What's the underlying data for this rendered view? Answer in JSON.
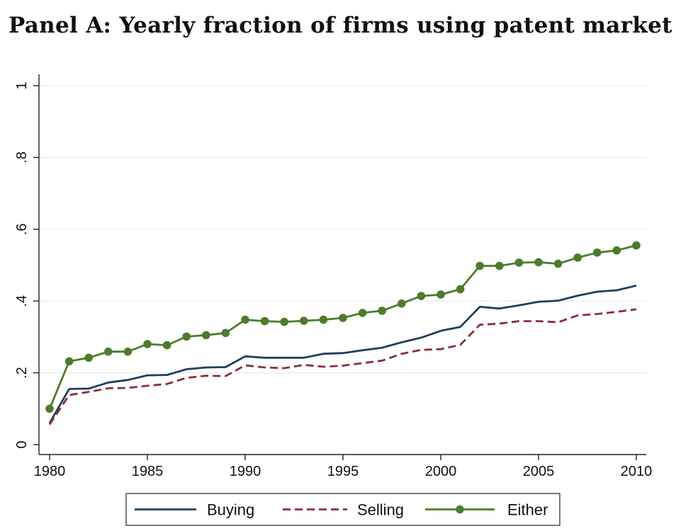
{
  "title": "Panel A: Yearly fraction of firms using patent market",
  "chart_data": {
    "type": "line",
    "title": "Panel A: Yearly fraction of firms using patent market",
    "xlabel": "",
    "ylabel": "",
    "xlim": [
      1980,
      2010
    ],
    "ylim": [
      0,
      1
    ],
    "x_ticks": [
      "1980",
      "1985",
      "1990",
      "1995",
      "2000",
      "2005",
      "2010"
    ],
    "y_ticks": [
      "0",
      ".2",
      ".4",
      ".6",
      ".8",
      "1"
    ],
    "grid": true,
    "legend_position": "bottom",
    "x": [
      1980,
      1981,
      1982,
      1983,
      1984,
      1985,
      1986,
      1987,
      1988,
      1989,
      1990,
      1991,
      1992,
      1993,
      1994,
      1995,
      1996,
      1997,
      1998,
      1999,
      2000,
      2001,
      2002,
      2003,
      2004,
      2005,
      2006,
      2007,
      2008,
      2009,
      2010
    ],
    "series": [
      {
        "name": "Buying",
        "color": "#1f3f5f",
        "style": "solid",
        "values": [
          0.06,
          0.155,
          0.156,
          0.173,
          0.18,
          0.193,
          0.194,
          0.21,
          0.215,
          0.216,
          0.246,
          0.242,
          0.242,
          0.242,
          0.253,
          0.255,
          0.263,
          0.27,
          0.285,
          0.298,
          0.317,
          0.328,
          0.384,
          0.379,
          0.388,
          0.398,
          0.401,
          0.415,
          0.426,
          0.43,
          0.443
        ]
      },
      {
        "name": "Selling",
        "color": "#8b2e3c",
        "style": "dashed",
        "values": [
          0.056,
          0.138,
          0.147,
          0.157,
          0.158,
          0.164,
          0.169,
          0.186,
          0.192,
          0.191,
          0.221,
          0.215,
          0.213,
          0.222,
          0.217,
          0.22,
          0.227,
          0.234,
          0.253,
          0.264,
          0.266,
          0.278,
          0.334,
          0.337,
          0.344,
          0.344,
          0.341,
          0.36,
          0.364,
          0.37,
          0.377
        ]
      },
      {
        "name": "Either",
        "color": "#4e7b2c",
        "style": "solid-markers",
        "values": [
          0.1,
          0.232,
          0.242,
          0.259,
          0.259,
          0.28,
          0.277,
          0.301,
          0.305,
          0.311,
          0.348,
          0.344,
          0.342,
          0.345,
          0.348,
          0.353,
          0.367,
          0.373,
          0.393,
          0.414,
          0.418,
          0.433,
          0.498,
          0.498,
          0.507,
          0.508,
          0.504,
          0.521,
          0.535,
          0.541,
          0.555
        ]
      }
    ]
  }
}
